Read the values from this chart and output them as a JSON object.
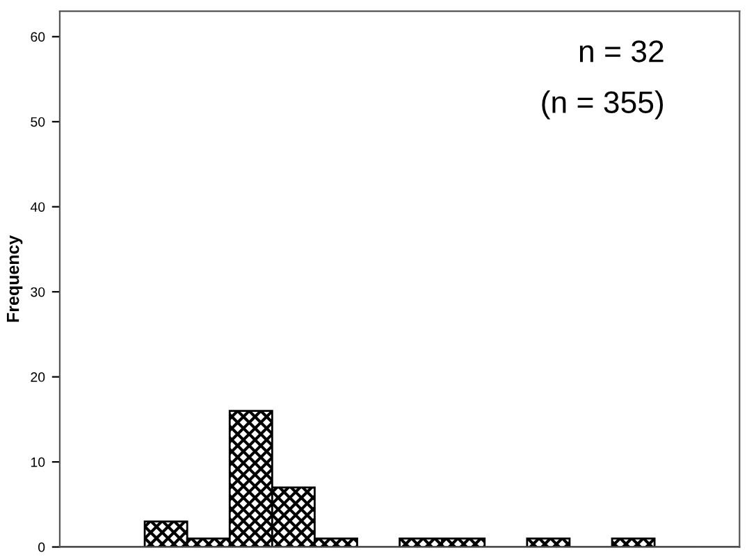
{
  "chart_data": {
    "type": "bar",
    "ylabel": "Frequency",
    "categories": [
      null,
      null,
      null,
      null,
      null,
      null,
      null,
      null,
      null,
      null,
      null,
      null,
      null,
      null,
      null,
      null
    ],
    "values": [
      0,
      0,
      3,
      1,
      16,
      7,
      1,
      0,
      1,
      1,
      0,
      1,
      0,
      1,
      0,
      0
    ],
    "color": "#000000",
    "ylim": [
      0,
      63
    ],
    "yticks": [
      0,
      10,
      20,
      30,
      40,
      50,
      60
    ],
    "annotations": [
      "n = 32",
      "(n = 355)"
    ],
    "grid": false,
    "legend": false
  }
}
